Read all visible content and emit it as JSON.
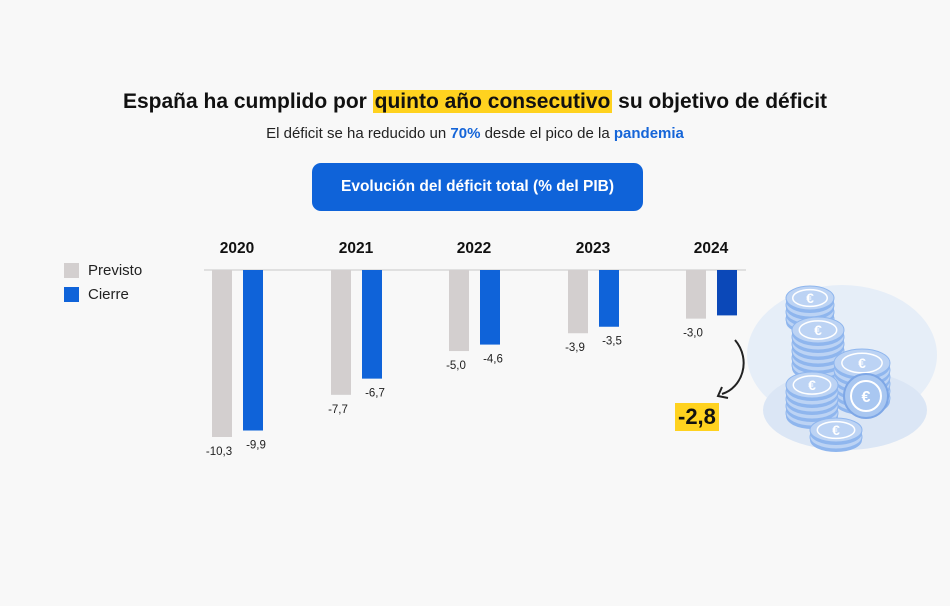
{
  "header": {
    "title_pre": "España ha cumplido por ",
    "title_highlight": "quinto año consecutivo",
    "title_post": " su objetivo de déficit",
    "subtitle_pre": "El déficit se ha reducido un ",
    "subtitle_pct": "70%",
    "subtitle_mid": " desde el pico de la ",
    "subtitle_word": "pandemia"
  },
  "chart_title": "Evolución del déficit total (% del PIB)",
  "legend": [
    {
      "label": "Previsto",
      "color": "#d3cfcf"
    },
    {
      "label": "Cierre",
      "color": "#0f63d9"
    }
  ],
  "highlight": {
    "value": "-2,8",
    "color": "#ffd21f"
  },
  "colors": {
    "accent": "#0f63d9",
    "last_bar": "#0b48b8",
    "highlight": "#ffd21f"
  },
  "chart_data": {
    "type": "bar",
    "categories": [
      "2020",
      "2021",
      "2022",
      "2023",
      "2024"
    ],
    "series": [
      {
        "name": "Previsto",
        "values": [
          -10.3,
          -7.7,
          -5.0,
          -3.9,
          -3.0
        ],
        "labels": [
          "-10,3",
          "-7,7",
          "-5,0",
          "-3,9",
          "-3,0"
        ]
      },
      {
        "name": "Cierre",
        "values": [
          -9.9,
          -6.7,
          -4.6,
          -3.5,
          -2.8
        ],
        "labels": [
          "-9,9",
          "-6,7",
          "-4,6",
          "-3,5",
          ""
        ]
      }
    ],
    "title": "Evolución del déficit total (% del PIB)",
    "xlabel": "",
    "ylabel": "",
    "ylim": [
      -10.3,
      0
    ],
    "grid": false,
    "legend_position": "left"
  }
}
